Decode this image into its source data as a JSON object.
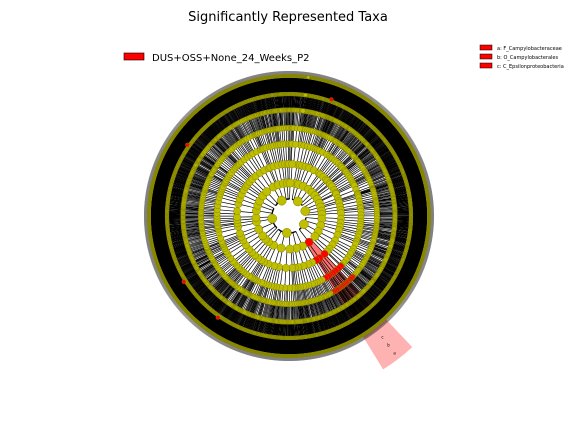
{
  "chart_data": {
    "type": "cladogram",
    "title": "Significantly Represented Taxa",
    "class_legend": [
      {
        "name": "DUS+OSS+None_24_Weeks_P2",
        "color": "#ff0000"
      }
    ],
    "taxa_legend": [
      {
        "key": "a",
        "text": "a: F_Campylobacteraceae",
        "color": "#ff0000"
      },
      {
        "key": "b",
        "text": "b: O_Campylobacterales",
        "color": "#ff0000"
      },
      {
        "key": "c",
        "text": "c: C_Epsilonproteobacteria",
        "color": "#ff0000"
      }
    ],
    "highlighted_clades": [
      {
        "label": "a",
        "level": "family",
        "name": "Campylobacteraceae"
      },
      {
        "label": "b",
        "level": "order",
        "name": "Campylobacterales"
      },
      {
        "label": "c",
        "level": "class",
        "name": "Epsilonproteobacteria"
      }
    ],
    "node_color": "#bfbf00",
    "node_edge_color": "#808000",
    "highlight_color": "#ff0000"
  }
}
